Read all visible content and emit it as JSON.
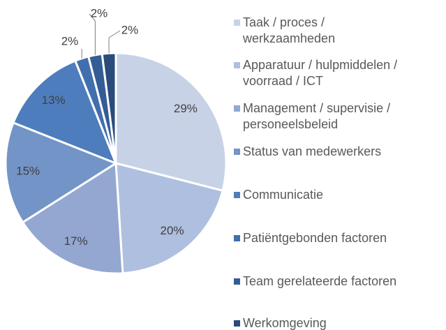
{
  "chart_data": {
    "type": "pie",
    "categories": [
      "Taak / proces /\nwerkzaamheden",
      "Apparatuur / hulpmiddelen /\nvoorraad / ICT",
      "Management / supervisie /\npersoneelsbeleid",
      "Status van medewerkers",
      "Communicatie",
      "Patiëntgebonden factoren",
      "Team gerelateerde factoren",
      "Werkomgeving"
    ],
    "values": [
      29,
      20,
      17,
      15,
      13,
      2,
      2,
      2
    ],
    "value_labels": [
      "29%",
      "20%",
      "17%",
      "15%",
      "13%",
      "2%",
      "2%",
      "2%"
    ],
    "colors": [
      "#c8d2e7",
      "#afbfdf",
      "#93a7d1",
      "#7394c7",
      "#4e7dbd",
      "#416ead",
      "#345d95",
      "#2a4b7b"
    ],
    "legend": "right"
  }
}
